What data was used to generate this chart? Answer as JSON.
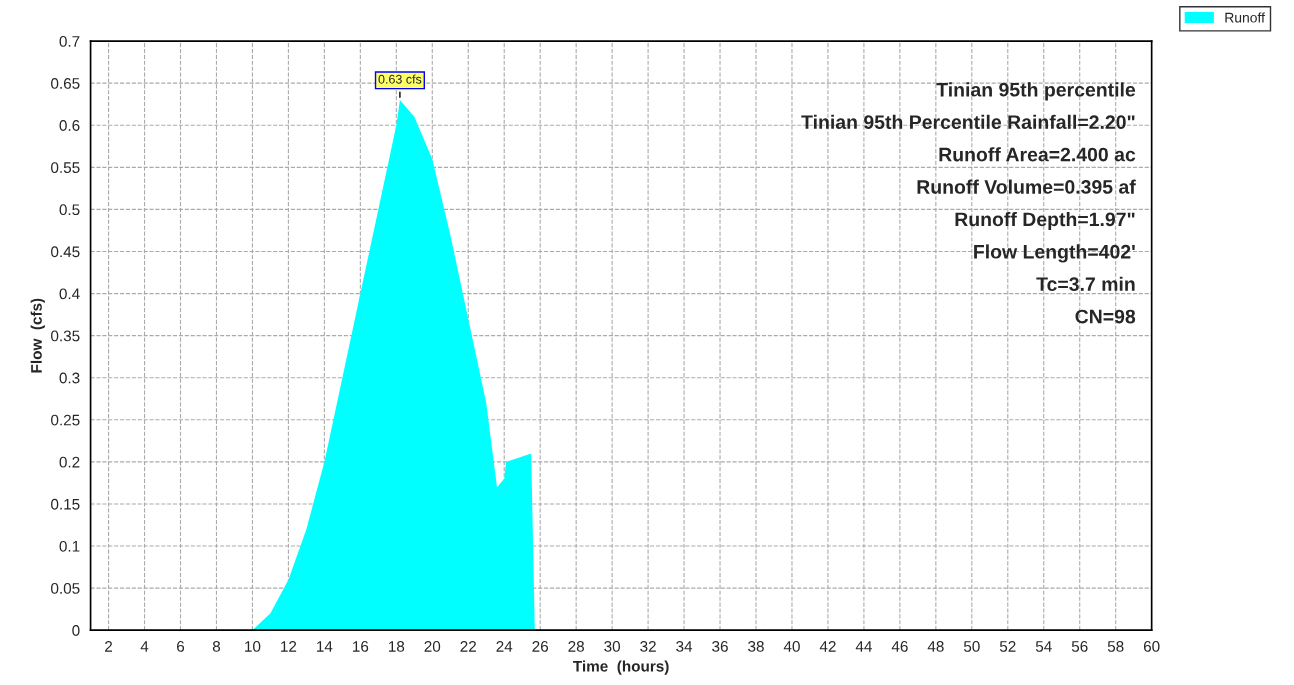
{
  "chart_data": {
    "type": "area",
    "xlabel": "Time  (hours)",
    "ylabel": "Flow  (cfs)",
    "x": [
      1,
      10,
      11,
      12,
      13,
      14,
      15,
      16,
      17,
      18,
      18.2,
      19,
      20,
      21,
      22,
      23,
      23.6,
      24,
      24.1,
      25.5,
      25.7,
      26,
      60
    ],
    "series": [
      {
        "name": "Runoff",
        "color": "#00ffff",
        "values": [
          0,
          0,
          0.02,
          0.06,
          0.12,
          0.2,
          0.3,
          0.4,
          0.5,
          0.6,
          0.63,
          0.61,
          0.56,
          0.47,
          0.37,
          0.27,
          0.17,
          0.18,
          0.2,
          0.21,
          0,
          0,
          0
        ]
      }
    ],
    "xlim": [
      1,
      60
    ],
    "xticks": [
      2,
      4,
      6,
      8,
      10,
      12,
      14,
      16,
      18,
      20,
      22,
      24,
      26,
      28,
      30,
      32,
      34,
      36,
      38,
      40,
      42,
      44,
      46,
      48,
      50,
      52,
      54,
      56,
      58,
      60
    ],
    "ylim": [
      0,
      0.7
    ],
    "yticks": [
      0,
      0.05,
      0.1,
      0.15,
      0.2,
      0.25,
      0.3,
      0.35,
      0.4,
      0.45,
      0.5,
      0.55,
      0.6,
      0.65,
      0.7
    ],
    "grid": true,
    "legend": "top right",
    "annotations": [
      {
        "text": "0.63 cfs",
        "x": 18.2,
        "y": 0.63
      },
      "Tinian 95th percentile",
      "Tinian 95th Percentile Rainfall=2.20\"",
      "Runoff Area=2.400 ac",
      "Runoff Volume=0.395 af",
      "Runoff Depth=1.97\"",
      "Flow Length=402'",
      "Tc=3.7 min",
      "CN=98"
    ]
  }
}
